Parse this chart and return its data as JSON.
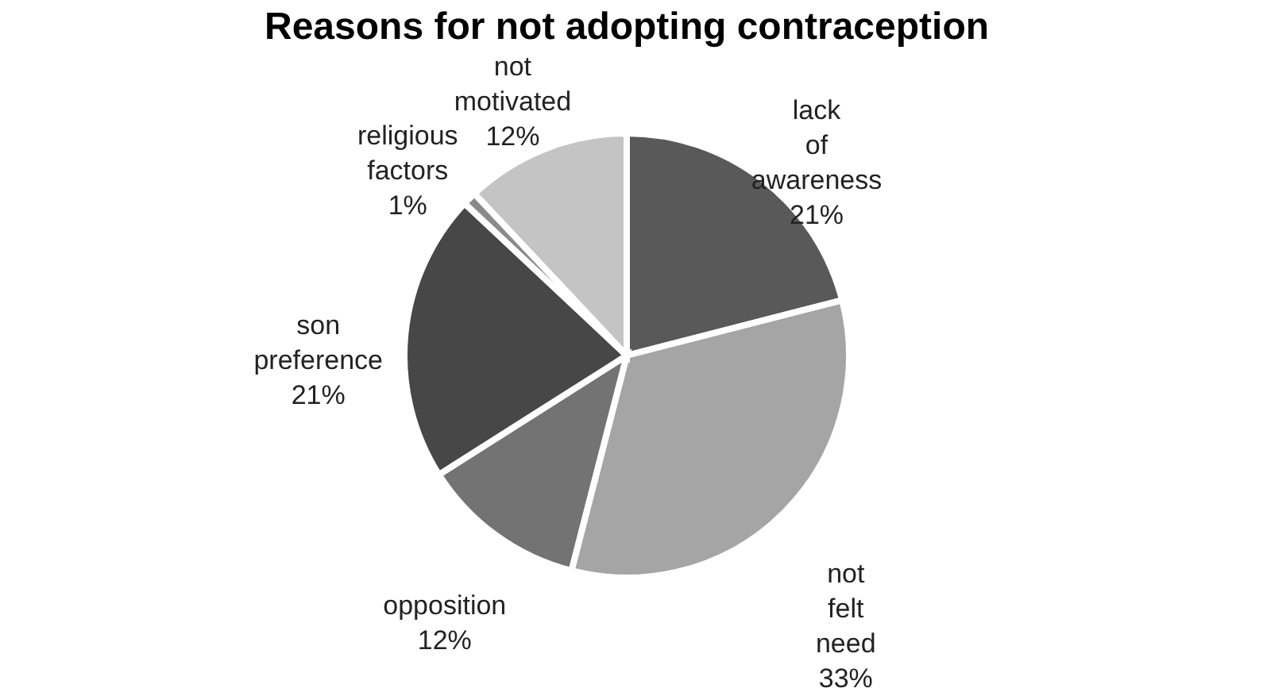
{
  "chart_data": {
    "type": "pie",
    "title": "Reasons for not adopting contraception",
    "categories": [
      "lack of awareness",
      "not felt need",
      "opposition",
      "son preference",
      "religious factors",
      "not motivated"
    ],
    "values": [
      21,
      33,
      12,
      21,
      1,
      12
    ],
    "value_labels": [
      "21%",
      "33%",
      "12%",
      "21%",
      "1%",
      "12%"
    ],
    "colors": [
      "#595959",
      "#a5a5a5",
      "#737373",
      "#474747",
      "#8a8a8a",
      "#c4c4c4"
    ],
    "legend": false
  }
}
